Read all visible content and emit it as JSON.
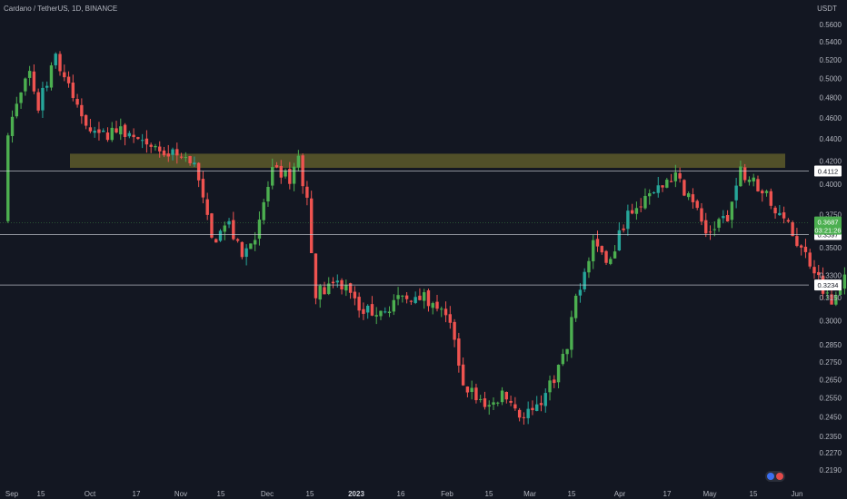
{
  "header": {
    "title": "Cardano / TetherUS, 1D, BINANCE",
    "currency": "USDT"
  },
  "colors": {
    "background": "#131722",
    "up": "#26a69a",
    "up_bright": "#4caf50",
    "down": "#ef5350",
    "zone": "#5d5a2a",
    "level_line": "#d1d4dc",
    "axis_text": "#b2b5be"
  },
  "flag_icon": "us-flag-icon",
  "chart_data": {
    "type": "candlestick",
    "title": "Cardano / TetherUS, 1D, BINANCE",
    "y_unit": "USDT",
    "y_scale": "log",
    "ylim": [
      0.184,
      0.573
    ],
    "y_ticks": [
      "0.5600",
      "0.5400",
      "0.5200",
      "0.5000",
      "0.4800",
      "0.4600",
      "0.4400",
      "0.4200",
      "0.4000",
      "0.3750",
      "0.3500",
      "0.3300",
      "0.3150",
      "0.3000",
      "0.2850",
      "0.2750",
      "0.2650",
      "0.2550",
      "0.2450",
      "0.2350",
      "0.2270",
      "0.2190"
    ],
    "x_ticks": [
      {
        "label": "Sep",
        "bold": false
      },
      {
        "label": "15",
        "bold": false
      },
      {
        "label": "Oct",
        "bold": false
      },
      {
        "label": "17",
        "bold": false
      },
      {
        "label": "Nov",
        "bold": false
      },
      {
        "label": "15",
        "bold": false
      },
      {
        "label": "Dec",
        "bold": false
      },
      {
        "label": "15",
        "bold": false
      },
      {
        "label": "2023",
        "bold": true
      },
      {
        "label": "16",
        "bold": false
      },
      {
        "label": "Feb",
        "bold": false
      },
      {
        "label": "15",
        "bold": false
      },
      {
        "label": "Mar",
        "bold": false
      },
      {
        "label": "15",
        "bold": false
      },
      {
        "label": "Apr",
        "bold": false
      },
      {
        "label": "17",
        "bold": false
      },
      {
        "label": "May",
        "bold": false
      },
      {
        "label": "15",
        "bold": false
      },
      {
        "label": "Jun",
        "bold": false
      }
    ],
    "resistance_zone": [
      0.414,
      0.4265
    ],
    "levels": [
      {
        "value": 0.4112,
        "label": "0.4112"
      },
      {
        "value": 0.3597,
        "label": "0.3597"
      },
      {
        "value": 0.3234,
        "label": "0.3234"
      }
    ],
    "current_price": {
      "value": 0.3687,
      "label": "0.3687",
      "countdown": "03:21:26"
    },
    "close_path": [
      [
        "2022-09-01",
        0.45
      ],
      [
        "2022-09-06",
        0.505
      ],
      [
        "2022-09-08",
        0.472
      ],
      [
        "2022-09-12",
        0.52
      ],
      [
        "2022-09-17",
        0.47
      ],
      [
        "2022-09-22",
        0.44
      ],
      [
        "2022-09-27",
        0.452
      ],
      [
        "2022-10-03",
        0.43
      ],
      [
        "2022-10-10",
        0.425
      ],
      [
        "2022-10-14",
        0.418
      ],
      [
        "2022-10-18",
        0.355
      ],
      [
        "2022-10-22",
        0.368
      ],
      [
        "2022-10-25",
        0.342
      ],
      [
        "2022-10-28",
        0.36
      ],
      [
        "2022-11-01",
        0.41
      ],
      [
        "2022-11-05",
        0.405
      ],
      [
        "2022-11-07",
        0.42
      ],
      [
        "2022-11-09",
        0.385
      ],
      [
        "2022-11-11",
        0.318
      ],
      [
        "2022-11-18",
        0.326
      ],
      [
        "2022-11-22",
        0.305
      ],
      [
        "2022-11-28",
        0.31
      ],
      [
        "2022-12-05",
        0.318
      ],
      [
        "2022-12-10",
        0.308
      ],
      [
        "2022-12-13",
        0.29
      ],
      [
        "2022-12-15",
        0.262
      ],
      [
        "2022-12-20",
        0.252
      ],
      [
        "2022-12-25",
        0.257
      ],
      [
        "2022-12-28",
        0.246
      ],
      [
        "2023-01-01",
        0.248
      ],
      [
        "2023-01-04",
        0.262
      ],
      [
        "2023-01-08",
        0.282
      ],
      [
        "2023-01-10",
        0.315
      ],
      [
        "2023-01-14",
        0.355
      ],
      [
        "2023-01-18",
        0.34
      ],
      [
        "2023-01-22",
        0.378
      ],
      [
        "2023-01-29",
        0.395
      ],
      [
        "2023-02-02",
        0.405
      ],
      [
        "2023-02-06",
        0.388
      ],
      [
        "2023-02-09",
        0.36
      ],
      [
        "2023-02-12",
        0.37
      ],
      [
        "2023-02-14",
        0.372
      ],
      [
        "2023-02-17",
        0.412
      ],
      [
        "2023-02-22",
        0.395
      ],
      [
        "2023-03-01",
        0.36
      ],
      [
        "2023-03-06",
        0.335
      ],
      [
        "2023-03-10",
        0.31
      ],
      [
        "2023-03-13",
        0.33
      ],
      [
        "2023-03-17",
        0.355
      ],
      [
        "2023-03-20",
        0.342
      ],
      [
        "2023-03-23",
        0.37
      ],
      [
        "2023-03-26",
        0.358
      ],
      [
        "2023-03-30",
        0.385
      ],
      [
        "2023-04-05",
        0.39
      ],
      [
        "2023-04-08",
        0.38
      ],
      [
        "2023-04-12",
        0.395
      ],
      [
        "2023-04-16",
        0.455
      ],
      [
        "2023-04-18",
        0.44
      ],
      [
        "2023-04-20",
        0.395
      ],
      [
        "2023-04-24",
        0.38
      ],
      [
        "2023-04-27",
        0.4
      ],
      [
        "2023-04-30",
        0.39
      ],
      [
        "2023-05-04",
        0.388
      ],
      [
        "2023-05-08",
        0.36
      ],
      [
        "2023-05-11",
        0.362
      ],
      [
        "2023-05-14",
        0.366
      ],
      [
        "2023-05-18",
        0.374
      ],
      [
        "2023-05-21",
        0.362
      ],
      [
        "2023-05-23",
        0.3687
      ]
    ]
  }
}
